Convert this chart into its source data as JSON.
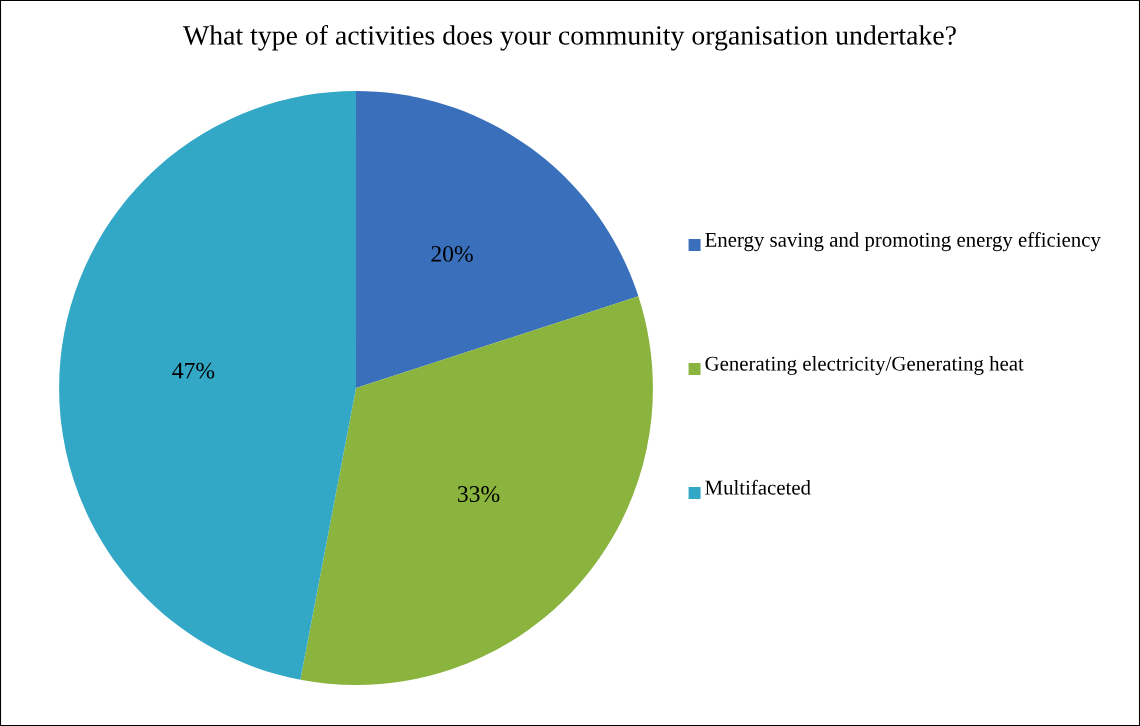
{
  "chart_data": {
    "type": "pie",
    "title": "What type of activities does your community organisation undertake?",
    "categories": [
      "Energy saving and promoting energy efficiency",
      "Generating electricity/Generating heat",
      "Multifaceted"
    ],
    "values": [
      20,
      33,
      47
    ],
    "colors": [
      "#3a70bb",
      "#8ab43e",
      "#32a8c6"
    ],
    "value_labels": [
      "20%",
      "33%",
      "47%"
    ],
    "legend": "right"
  }
}
